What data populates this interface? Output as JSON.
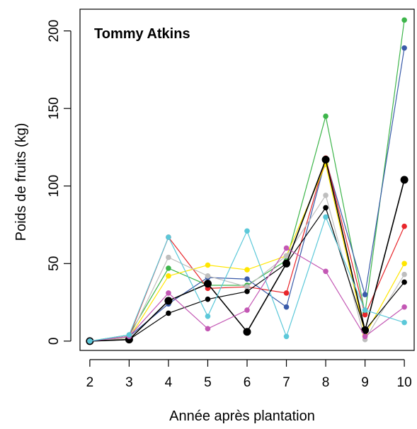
{
  "chart_data": {
    "type": "line",
    "title": "Tommy Atkins",
    "xlabel": "Année après plantation",
    "ylabel": "Poids de fruits (kg)",
    "x": [
      2,
      3,
      4,
      5,
      6,
      7,
      8,
      9,
      10
    ],
    "xlim": [
      1.75,
      10.25
    ],
    "ylim": [
      -6,
      214
    ],
    "xticks": [
      2,
      3,
      4,
      5,
      6,
      7,
      8,
      9,
      10
    ],
    "yticks": [
      0,
      50,
      100,
      150,
      200
    ],
    "grid": false,
    "series": [
      {
        "color": "#3DB54A",
        "values": [
          0,
          4,
          47,
          36,
          36,
          52,
          145,
          18,
          207
        ]
      },
      {
        "color": "#3A5BA9",
        "values": [
          0,
          3,
          24,
          41,
          40,
          22,
          117,
          30,
          189
        ]
      },
      {
        "color": "#E8262B",
        "values": [
          0,
          3,
          67,
          34,
          35,
          31,
          118,
          17,
          74
        ]
      },
      {
        "color": "#FFE600",
        "values": [
          0,
          2,
          42,
          49,
          46,
          55,
          114,
          4,
          50
        ]
      },
      {
        "color": "#BEBEBE",
        "values": [
          0,
          2,
          54,
          42,
          35,
          55,
          94,
          1,
          43
        ]
      },
      {
        "color": "#000000",
        "values": [
          0,
          1,
          18,
          27,
          32,
          50,
          86,
          7,
          38
        ]
      },
      {
        "color": "#000000",
        "emphasis": true,
        "values": [
          0,
          1,
          26,
          37,
          6,
          50,
          117,
          7,
          104
        ]
      },
      {
        "color": "#C357B4",
        "values": [
          0,
          3,
          31,
          8,
          20,
          60,
          45,
          3,
          22
        ]
      },
      {
        "color": "#5BC8D9",
        "values": [
          0,
          4,
          67,
          16,
          71,
          3,
          80,
          20,
          12
        ]
      }
    ]
  }
}
